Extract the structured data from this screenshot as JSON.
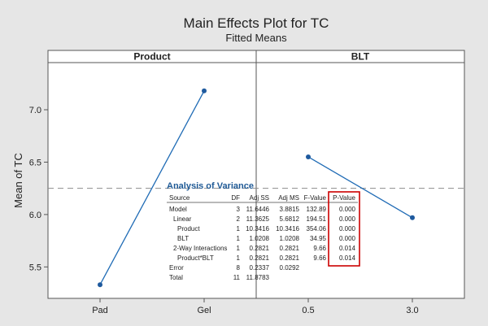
{
  "chart_data": {
    "type": "line",
    "title": "Main Effects Plot for TC",
    "subtitle": "Fitted Means",
    "ylabel": "Mean of TC",
    "ylim": [
      5.2,
      7.45
    ],
    "yticks": [
      5.5,
      6.0,
      6.5,
      7.0
    ],
    "yticklabels": [
      "5.5",
      "6.0",
      "6.5",
      "7.0"
    ],
    "reference_mean": 6.25,
    "panels": [
      {
        "label": "Product",
        "categories": [
          "Pad",
          "Gel"
        ],
        "values": [
          5.33,
          7.18
        ]
      },
      {
        "label": "BLT",
        "categories": [
          "0.5",
          "3.0"
        ],
        "values": [
          6.55,
          5.97
        ]
      }
    ],
    "colors": {
      "line": "#1f6bb5",
      "marker": "#1f5a9e",
      "highlight": "#cc0000",
      "reference": "#8c8c8c"
    }
  },
  "anova": {
    "title": "Analysis of Variance",
    "headers": [
      "Source",
      "DF",
      "Adj SS",
      "Adj MS",
      "F-Value",
      "P-Value"
    ],
    "rows": [
      [
        "Model",
        "3",
        "11.6446",
        "3.8815",
        "132.89",
        "0.000"
      ],
      [
        "  Linear",
        "2",
        "11.3625",
        "5.6812",
        "194.51",
        "0.000"
      ],
      [
        "    Product",
        "1",
        "10.3416",
        "10.3416",
        "354.06",
        "0.000"
      ],
      [
        "    BLT",
        "1",
        "1.0208",
        "1.0208",
        "34.95",
        "0.000"
      ],
      [
        "  2-Way Interactions",
        "1",
        "0.2821",
        "0.2821",
        "9.66",
        "0.014"
      ],
      [
        "    Product*BLT",
        "1",
        "0.2821",
        "0.2821",
        "9.66",
        "0.014"
      ],
      [
        "Error",
        "8",
        "0.2337",
        "0.0292",
        "",
        ""
      ],
      [
        "Total",
        "11",
        "11.8783",
        "",
        "",
        ""
      ]
    ]
  }
}
